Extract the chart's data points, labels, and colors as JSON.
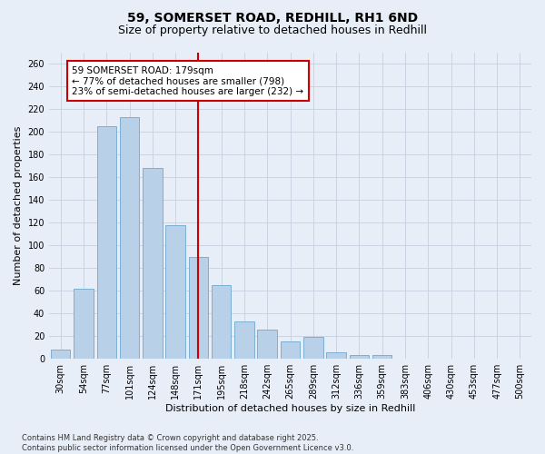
{
  "title_line1": "59, SOMERSET ROAD, REDHILL, RH1 6ND",
  "title_line2": "Size of property relative to detached houses in Redhill",
  "xlabel": "Distribution of detached houses by size in Redhill",
  "ylabel": "Number of detached properties",
  "categories": [
    "30sqm",
    "54sqm",
    "77sqm",
    "101sqm",
    "124sqm",
    "148sqm",
    "171sqm",
    "195sqm",
    "218sqm",
    "242sqm",
    "265sqm",
    "289sqm",
    "312sqm",
    "336sqm",
    "359sqm",
    "383sqm",
    "406sqm",
    "430sqm",
    "453sqm",
    "477sqm",
    "500sqm"
  ],
  "values": [
    8,
    62,
    205,
    213,
    168,
    118,
    90,
    65,
    33,
    26,
    15,
    19,
    6,
    3,
    3,
    0,
    0,
    0,
    0,
    0,
    0
  ],
  "highlight_index": 6,
  "bar_color": "#b8d0e8",
  "bar_edge_color": "#7bafd4",
  "highlight_line_color": "#cc0000",
  "background_color": "#e8eef8",
  "grid_color": "#c5cfe0",
  "annotation_text": "59 SOMERSET ROAD: 179sqm\n← 77% of detached houses are smaller (798)\n23% of semi-detached houses are larger (232) →",
  "annotation_box_color": "#ffffff",
  "annotation_box_edge": "#cc0000",
  "ylim": [
    0,
    270
  ],
  "yticks": [
    0,
    20,
    40,
    60,
    80,
    100,
    120,
    140,
    160,
    180,
    200,
    220,
    240,
    260
  ],
  "footnote": "Contains HM Land Registry data © Crown copyright and database right 2025.\nContains public sector information licensed under the Open Government Licence v3.0.",
  "title_fontsize": 10,
  "subtitle_fontsize": 9,
  "axis_label_fontsize": 8,
  "tick_fontsize": 7,
  "annotation_fontsize": 7.5,
  "footnote_fontsize": 6
}
